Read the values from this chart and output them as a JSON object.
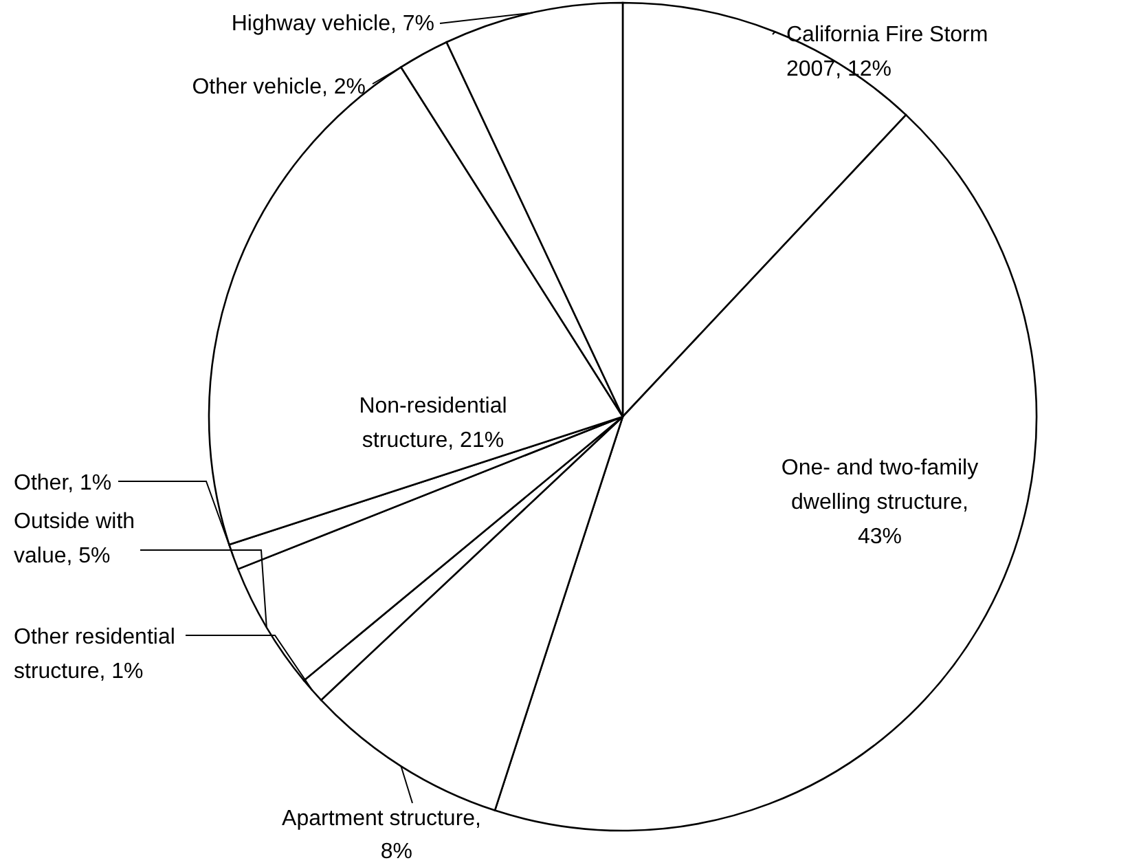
{
  "chart_data": {
    "type": "pie",
    "categories": [
      "California Fire Storm 2007, 12%",
      "One- and two-family dwelling structure, 43%",
      "Apartment structure, 8%",
      "Other residential structure, 1%",
      "Outside with value, 5%",
      "Other, 1%",
      "Non-residential structure, 21%",
      "Other vehicle, 2%",
      "Highway vehicle, 7%"
    ],
    "values": [
      12,
      43,
      8,
      1,
      5,
      1,
      21,
      2,
      7
    ],
    "colors": [
      "#ffffff",
      "#ffffff",
      "#ffffff",
      "#ffffff",
      "#ffffff",
      "#ffffff",
      "#ffffff",
      "#ffffff",
      "#ffffff"
    ]
  }
}
